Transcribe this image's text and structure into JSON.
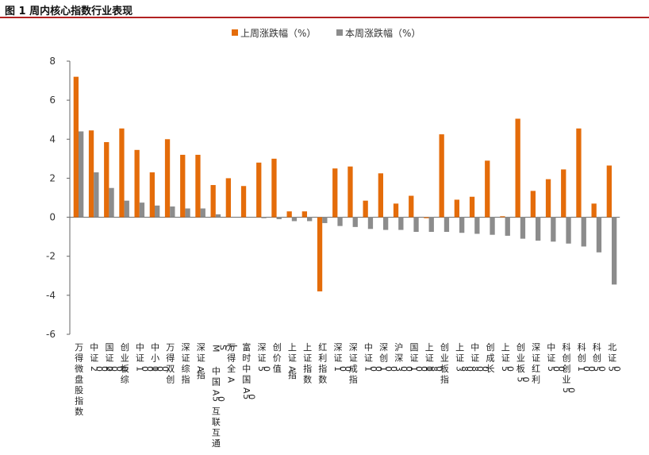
{
  "figure": {
    "title": "图 1  周内核心指数行业表现"
  },
  "colors": {
    "last_week": "#E46C0A",
    "this_week": "#8C8C8C",
    "axis": "#666666"
  },
  "chart_data": {
    "type": "bar",
    "title": "",
    "xlabel": "",
    "ylabel": "",
    "ylim": [
      -6,
      8
    ],
    "yticks": [
      8,
      6,
      4,
      2,
      0,
      -2,
      -4,
      -6
    ],
    "grid": false,
    "legend_position": "top",
    "categories": [
      "万得微盘股指数",
      "中证2000",
      "国证2000",
      "创业板综",
      "中证1000",
      "中小100",
      "万得双创",
      "深证综指",
      "深证A指",
      "MSCI中国A50互联互通",
      "万得全A",
      "富时中国A50",
      "深证50",
      "创价值",
      "上证A指",
      "上证指数",
      "红利指数",
      "深证100",
      "深证成指",
      "中证100",
      "深创100",
      "沪深300",
      "国证1000",
      "上证180",
      "创业板指",
      "上证380",
      "中证800",
      "创成长",
      "上证50",
      "创业板50",
      "深证红利",
      "中证500",
      "科创创业50",
      "科创100",
      "科创50",
      "北证50"
    ],
    "series": [
      {
        "name": "上周涨跌幅（%）",
        "values": [
          7.2,
          4.45,
          3.85,
          4.55,
          3.45,
          2.3,
          4.0,
          3.2,
          3.2,
          1.65,
          2.0,
          1.6,
          2.8,
          3.0,
          0.3,
          0.3,
          -3.8,
          2.5,
          2.6,
          0.85,
          2.25,
          0.7,
          1.1,
          -0.05,
          4.25,
          0.9,
          1.05,
          2.9,
          0.05,
          5.05,
          1.35,
          1.95,
          2.45,
          4.55,
          0.7,
          2.65
        ]
      },
      {
        "name": "本周涨跌幅（%）",
        "values": [
          4.4,
          2.3,
          1.5,
          0.85,
          0.75,
          0.6,
          0.55,
          0.45,
          0.45,
          0.15,
          0.0,
          0.0,
          -0.05,
          -0.1,
          -0.2,
          -0.2,
          -0.3,
          -0.45,
          -0.5,
          -0.6,
          -0.65,
          -0.65,
          -0.75,
          -0.75,
          -0.75,
          -0.8,
          -0.85,
          -0.9,
          -0.95,
          -1.1,
          -1.2,
          -1.25,
          -1.35,
          -1.5,
          -1.8,
          -3.45
        ]
      }
    ]
  }
}
